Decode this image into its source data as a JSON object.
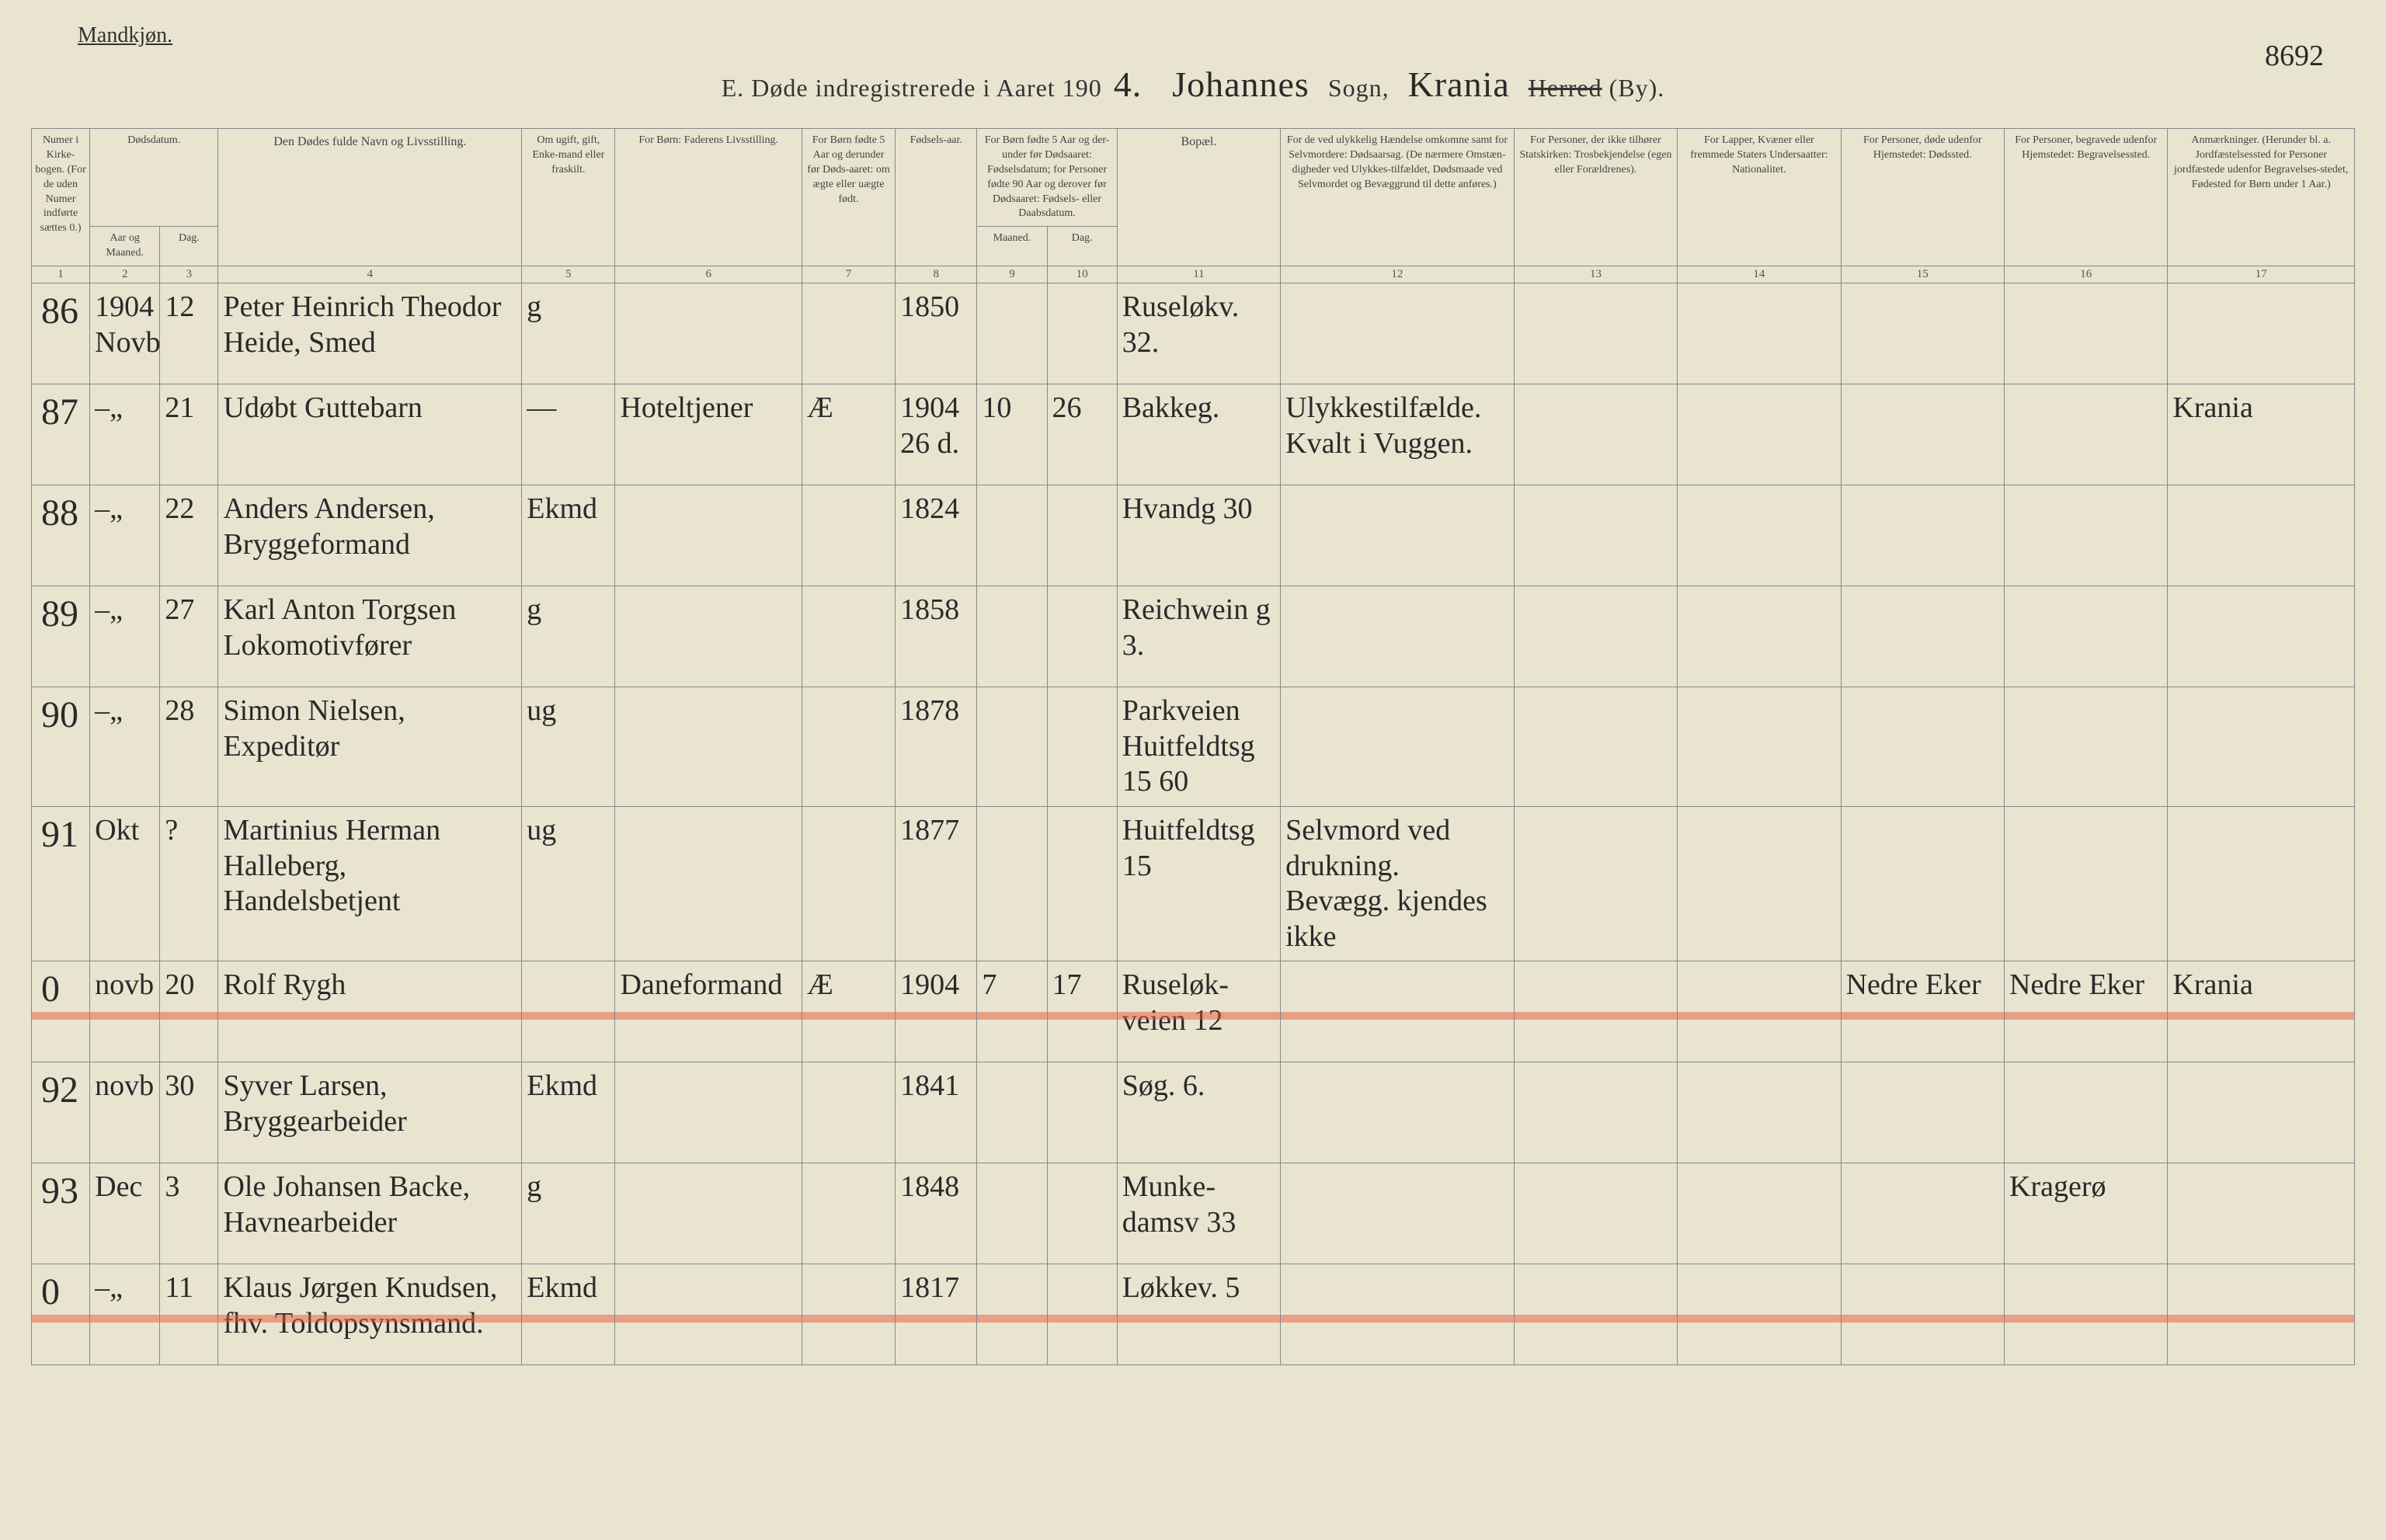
{
  "page_number_corner": "8692",
  "header": {
    "mandkjon": "Mandkjøn.",
    "title_prefix": "E.  Døde indregistrerede i Aaret 190",
    "year_suffix": "4.",
    "parish_name": "Johannes",
    "sogn_label": "Sogn,",
    "district_name": "Krania",
    "herred_struck": "Herred",
    "by_label": "(By)."
  },
  "columns": {
    "c1": "Numer i Kirke-bogen. (For de uden Numer indførte sættes 0.)",
    "c2_top": "Dødsdatum.",
    "c2a": "Aar og Maaned.",
    "c2b": "Dag.",
    "c4": "Den Dødes fulde Navn og Livsstilling.",
    "c5": "Om ugift, gift, Enke-mand eller fraskilt.",
    "c6": "For Børn: Faderens Livsstilling.",
    "c7": "For Børn fødte 5 Aar og derunder før Døds-aaret: om ægte eller uægte født.",
    "c8": "Fødsels-aar.",
    "c9_top": "For Børn fødte 5 Aar og der-under før Dødsaaret: Fødselsdatum; for Personer fødte 90 Aar og derover før Dødsaaret: Fødsels- eller Daabsdatum.",
    "c9a": "Maaned.",
    "c9b": "Dag.",
    "c11": "Bopæl.",
    "c12": "For de ved ulykkelig Hændelse omkomne samt for Selvmordere: Dødsaarsag. (De nærmere Omstæn-digheder ved Ulykkes-tilfældet, Dødsmaade ved Selvmordet og Bevæggrund til dette anføres.)",
    "c13": "For Personer, der ikke tilhører Statskirken: Trosbekjendelse (egen eller Forældrenes).",
    "c14": "For Lapper, Kvæner eller fremmede Staters Undersaatter: Nationalitet.",
    "c15": "For Personer, døde udenfor Hjemstedet: Dødssted.",
    "c16": "For Personer, begravede udenfor Hjemstedet: Begravelsessted.",
    "c17": "Anmærkninger. (Herunder bl. a. Jordfæstelsessted for Personer jordfæstede udenfor Begravelses-stedet, Fødested for Børn under 1 Aar.)"
  },
  "colnums": [
    "1",
    "2",
    "3",
    "4",
    "5",
    "6",
    "7",
    "8",
    "9",
    "10",
    "11",
    "12",
    "13",
    "14",
    "15",
    "16",
    "17"
  ],
  "rows": [
    {
      "n": "86",
      "aarmnd": "1904 Novb",
      "dag": "12",
      "navn": "Peter Heinrich Theodor Heide, Smed",
      "status": "g",
      "far": "",
      "aegte": "",
      "faar": "1850",
      "fm": "",
      "fd": "",
      "bopael": "Ruseløkv. 32.",
      "aarsag": "",
      "tros": "",
      "nat": "",
      "dsted": "",
      "bsted": "",
      "anm": "",
      "red": false
    },
    {
      "n": "87",
      "aarmnd": "–„",
      "dag": "21",
      "navn": "Udøbt Guttebarn",
      "status": "—",
      "far": "Hoteltjener",
      "aegte": "Æ",
      "faar": "1904 26 d.",
      "fm": "10",
      "fd": "26",
      "bopael": "Bakkeg.",
      "aarsag": "Ulykkestilfælde. Kvalt i Vuggen.",
      "tros": "",
      "nat": "",
      "dsted": "",
      "bsted": "",
      "anm": "Krania",
      "red": false
    },
    {
      "n": "88",
      "aarmnd": "–„",
      "dag": "22",
      "navn": "Anders Andersen, Bryggeformand",
      "status": "Ekmd",
      "far": "",
      "aegte": "",
      "faar": "1824",
      "fm": "",
      "fd": "",
      "bopael": "Hvandg 30",
      "aarsag": "",
      "tros": "",
      "nat": "",
      "dsted": "",
      "bsted": "",
      "anm": "",
      "red": false
    },
    {
      "n": "89",
      "aarmnd": "–„",
      "dag": "27",
      "navn": "Karl Anton Torgsen Lokomotivfører",
      "status": "g",
      "far": "",
      "aegte": "",
      "faar": "1858",
      "fm": "",
      "fd": "",
      "bopael": "Reichwein g 3.",
      "aarsag": "",
      "tros": "",
      "nat": "",
      "dsted": "",
      "bsted": "",
      "anm": "",
      "red": false
    },
    {
      "n": "90",
      "aarmnd": "–„",
      "dag": "28",
      "navn": "Simon Nielsen, Expeditør",
      "status": "ug",
      "far": "",
      "aegte": "",
      "faar": "1878",
      "fm": "",
      "fd": "",
      "bopael": "Parkveien Huitfeldtsg 15 60",
      "aarsag": "",
      "tros": "",
      "nat": "",
      "dsted": "",
      "bsted": "",
      "anm": "",
      "red": false
    },
    {
      "n": "91",
      "aarmnd": "Okt",
      "dag": "?",
      "navn": "Martinius Herman Halleberg, Handelsbetjent",
      "status": "ug",
      "far": "",
      "aegte": "",
      "faar": "1877",
      "fm": "",
      "fd": "",
      "bopael": "Huitfeldtsg 15",
      "aarsag": "Selvmord ved drukning. Bevægg. kjendes ikke",
      "tros": "",
      "nat": "",
      "dsted": "",
      "bsted": "",
      "anm": "",
      "red": false
    },
    {
      "n": "0",
      "aarmnd": "novb",
      "dag": "20",
      "navn": "Rolf Rygh",
      "status": "",
      "far": "Daneformand",
      "aegte": "Æ",
      "faar": "1904",
      "fm": "7",
      "fd": "17",
      "bopael": "Ruseløk-veien 12",
      "aarsag": "",
      "tros": "",
      "nat": "",
      "dsted": "Nedre Eker",
      "bsted": "Nedre Eker",
      "anm": "Krania",
      "red": true
    },
    {
      "n": "92",
      "aarmnd": "novb",
      "dag": "30",
      "navn": "Syver Larsen, Bryggearbeider",
      "status": "Ekmd",
      "far": "",
      "aegte": "",
      "faar": "1841",
      "fm": "",
      "fd": "",
      "bopael": "Søg. 6.",
      "aarsag": "",
      "tros": "",
      "nat": "",
      "dsted": "",
      "bsted": "",
      "anm": "",
      "red": false
    },
    {
      "n": "93",
      "aarmnd": "Dec",
      "dag": "3",
      "navn": "Ole Johansen Backe, Havnearbeider",
      "status": "g",
      "far": "",
      "aegte": "",
      "faar": "1848",
      "fm": "",
      "fd": "",
      "bopael": "Munke-damsv 33",
      "aarsag": "",
      "tros": "",
      "nat": "",
      "dsted": "",
      "bsted": "Kragerø",
      "anm": "",
      "red": false
    },
    {
      "n": "0",
      "aarmnd": "–„",
      "dag": "11",
      "navn": "Klaus Jørgen Knudsen, fhv. Toldopsynsmand.",
      "status": "Ekmd",
      "far": "",
      "aegte": "",
      "faar": "1817",
      "fm": "",
      "fd": "",
      "bopael": "Løkkev. 5",
      "aarsag": "",
      "tros": "",
      "nat": "",
      "dsted": "",
      "bsted": "",
      "anm": "",
      "red": true
    }
  ],
  "style": {
    "page_bg": "#e8e4d0",
    "ink": "#2a2a2a",
    "rule": "#888888",
    "red_stroke": "#e85a3a",
    "header_font_size_pt": 24,
    "body_hand_font_size_pt": 28
  }
}
